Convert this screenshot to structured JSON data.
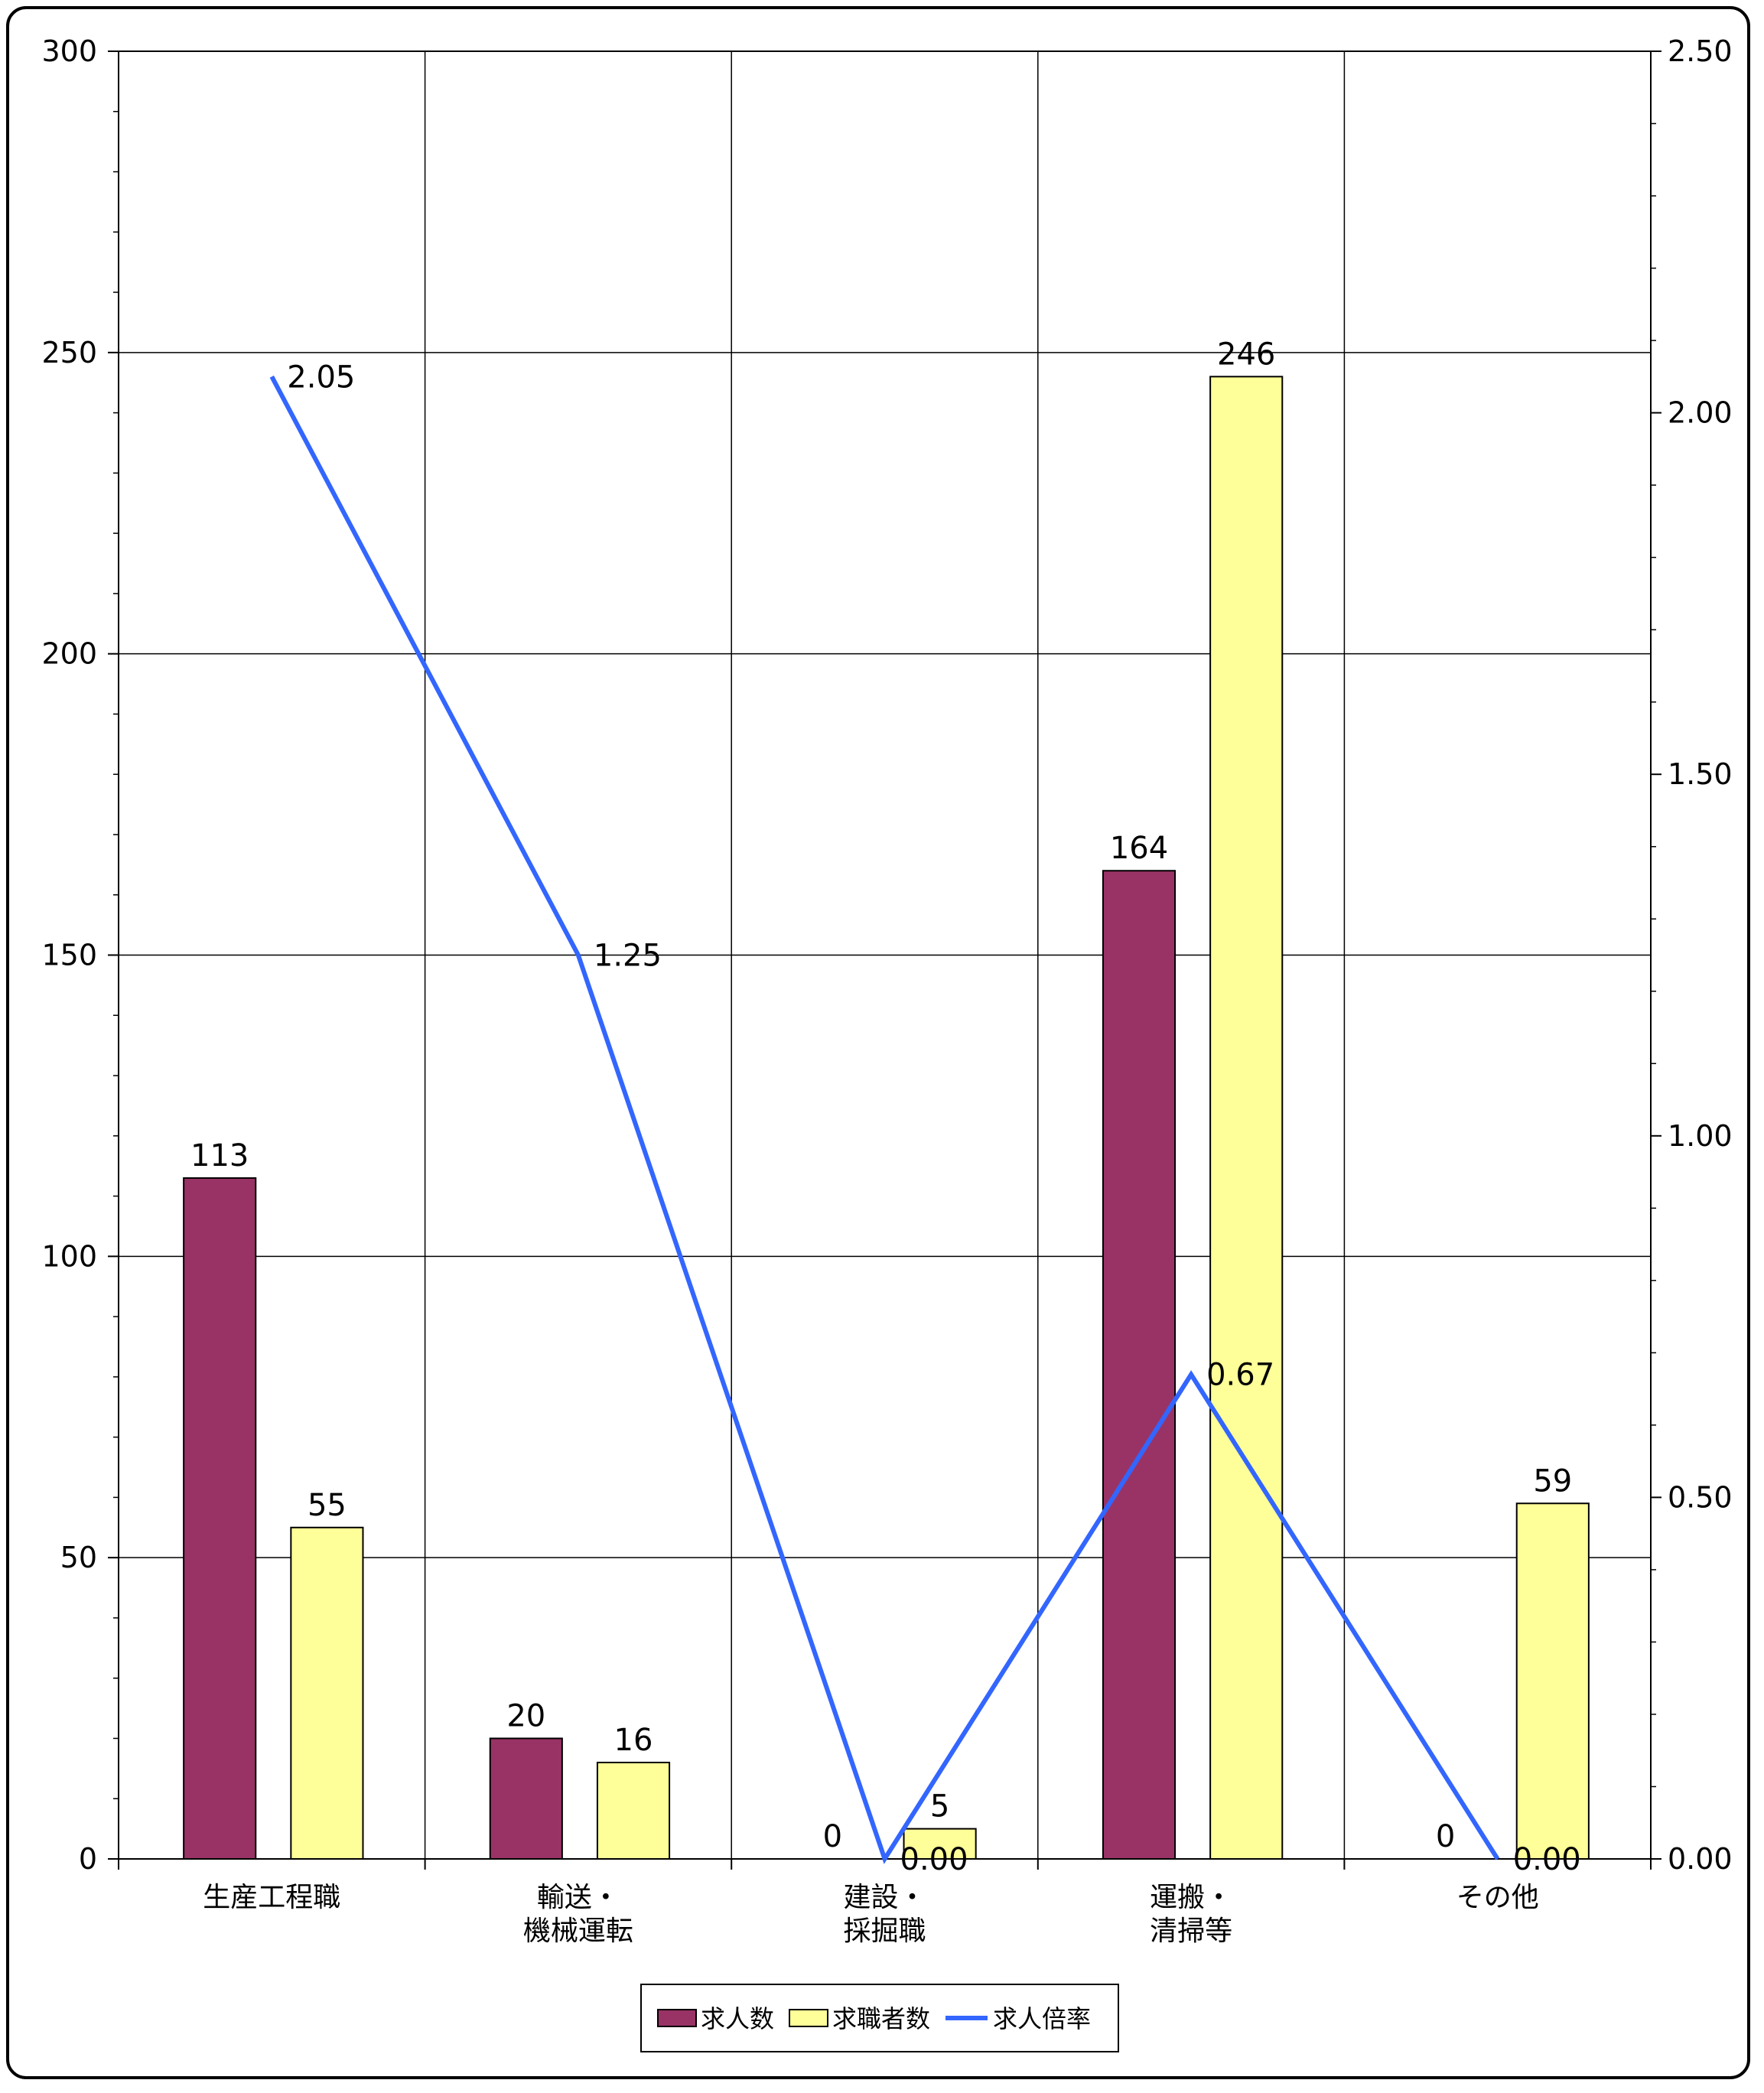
{
  "chart_data": {
    "type": "bar+line",
    "categories": [
      [
        "生産工程職"
      ],
      [
        "輸送・",
        "機械運転"
      ],
      [
        "建設・",
        "採掘職"
      ],
      [
        "運搬・",
        "清掃等"
      ],
      [
        "その他"
      ]
    ],
    "series": [
      {
        "name": "求人数",
        "type": "bar",
        "axis": "left",
        "color": "#993366",
        "values": [
          113,
          20,
          0,
          164,
          0
        ]
      },
      {
        "name": "求職者数",
        "type": "bar",
        "axis": "left",
        "color": "#FFFF99",
        "values": [
          55,
          16,
          5,
          246,
          59
        ]
      },
      {
        "name": "求人倍率",
        "type": "line",
        "axis": "right",
        "color": "#3366FF",
        "values": [
          2.05,
          1.25,
          0.0,
          0.67,
          0.0
        ]
      }
    ],
    "data_labels": {
      "求人数": [
        "113",
        "20",
        "0",
        "164",
        "0"
      ],
      "求職者数": [
        "55",
        "16",
        "5",
        "246",
        "59"
      ],
      "求人倍率": [
        "2.05",
        "1.25",
        "0.00",
        "0.67",
        "0.00"
      ]
    },
    "y_left": {
      "min": 0,
      "max": 300,
      "major": 50,
      "ticks": [
        "0",
        "50",
        "100",
        "150",
        "200",
        "250",
        "300"
      ]
    },
    "y_right": {
      "min": 0,
      "max": 2.5,
      "major": 0.5,
      "ticks": [
        "0.00",
        "0.50",
        "1.00",
        "1.50",
        "2.00",
        "2.50"
      ]
    },
    "grid": true,
    "legend_position": "bottom",
    "title": "",
    "xlabel": "",
    "ylabel": ""
  }
}
